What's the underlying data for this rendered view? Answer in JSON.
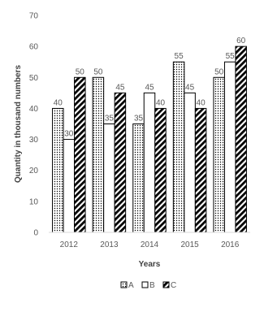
{
  "chart_data": {
    "type": "bar",
    "categories": [
      "2012",
      "2013",
      "2014",
      "2015",
      "2016"
    ],
    "series": [
      {
        "name": "A",
        "values": [
          40,
          50,
          35,
          55,
          50
        ],
        "pattern": "dots"
      },
      {
        "name": "B",
        "values": [
          30,
          35,
          45,
          45,
          55
        ],
        "pattern": "white"
      },
      {
        "name": "C",
        "values": [
          50,
          45,
          40,
          40,
          60
        ],
        "pattern": "diagonal"
      }
    ],
    "xlabel": "Years",
    "ylabel": "Quantity in thousand numbers",
    "ylim": [
      0,
      70
    ],
    "yticks": [
      0,
      10,
      20,
      30,
      40,
      50,
      60,
      70
    ],
    "grid": false,
    "legend_position": "bottom"
  }
}
